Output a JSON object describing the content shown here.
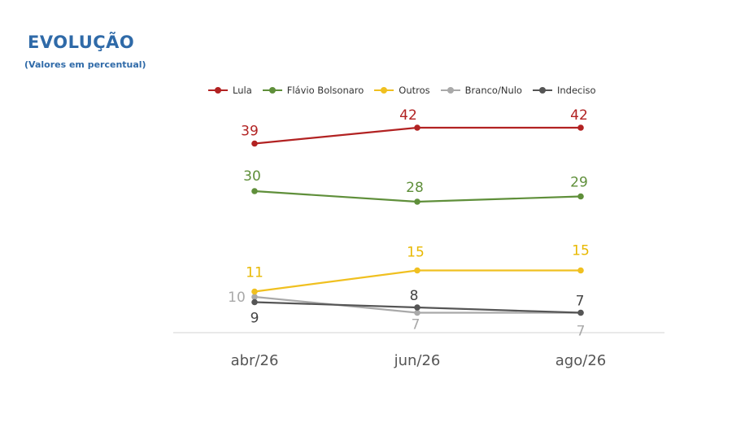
{
  "header": {
    "title": "EVOLUÇÃO",
    "subtitle": "(Valores em percentual)"
  },
  "chart_data": {
    "type": "line",
    "categories": [
      "abr/26",
      "jun/26",
      "ago/26"
    ],
    "series": [
      {
        "name": "Lula",
        "color": "#b22222",
        "values": [
          39,
          42,
          42
        ]
      },
      {
        "name": "Flávio Bolsonaro",
        "color": "#5f8f3a",
        "values": [
          30,
          28,
          29
        ]
      },
      {
        "name": "Outros",
        "color": "#f0c020",
        "values": [
          11,
          15,
          15
        ]
      },
      {
        "name": "Branco/Nulo",
        "color": "#a9a9a9",
        "values": [
          10,
          7,
          7
        ]
      },
      {
        "name": "Indeciso",
        "color": "#555555",
        "values": [
          9,
          8,
          7
        ]
      }
    ],
    "legend_position": "top",
    "grid": false
  }
}
